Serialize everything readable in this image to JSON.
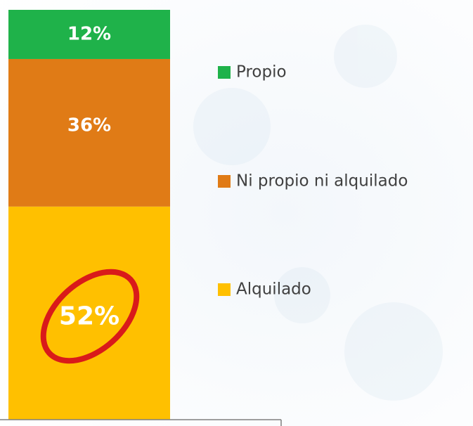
{
  "chart_data": {
    "type": "bar",
    "stacked": true,
    "categories": [
      null
    ],
    "series": [
      {
        "name": "Propio",
        "color": "#1fb24a",
        "values": [
          12
        ],
        "value_labels": [
          "12%"
        ]
      },
      {
        "name": "Ni propio ni alquilado",
        "color": "#e07b16",
        "values": [
          36
        ],
        "value_labels": [
          "36%"
        ]
      },
      {
        "name": "Alquilado",
        "color": "#ffc000",
        "values": [
          52
        ],
        "value_labels": [
          "52%"
        ]
      }
    ]
  }
}
